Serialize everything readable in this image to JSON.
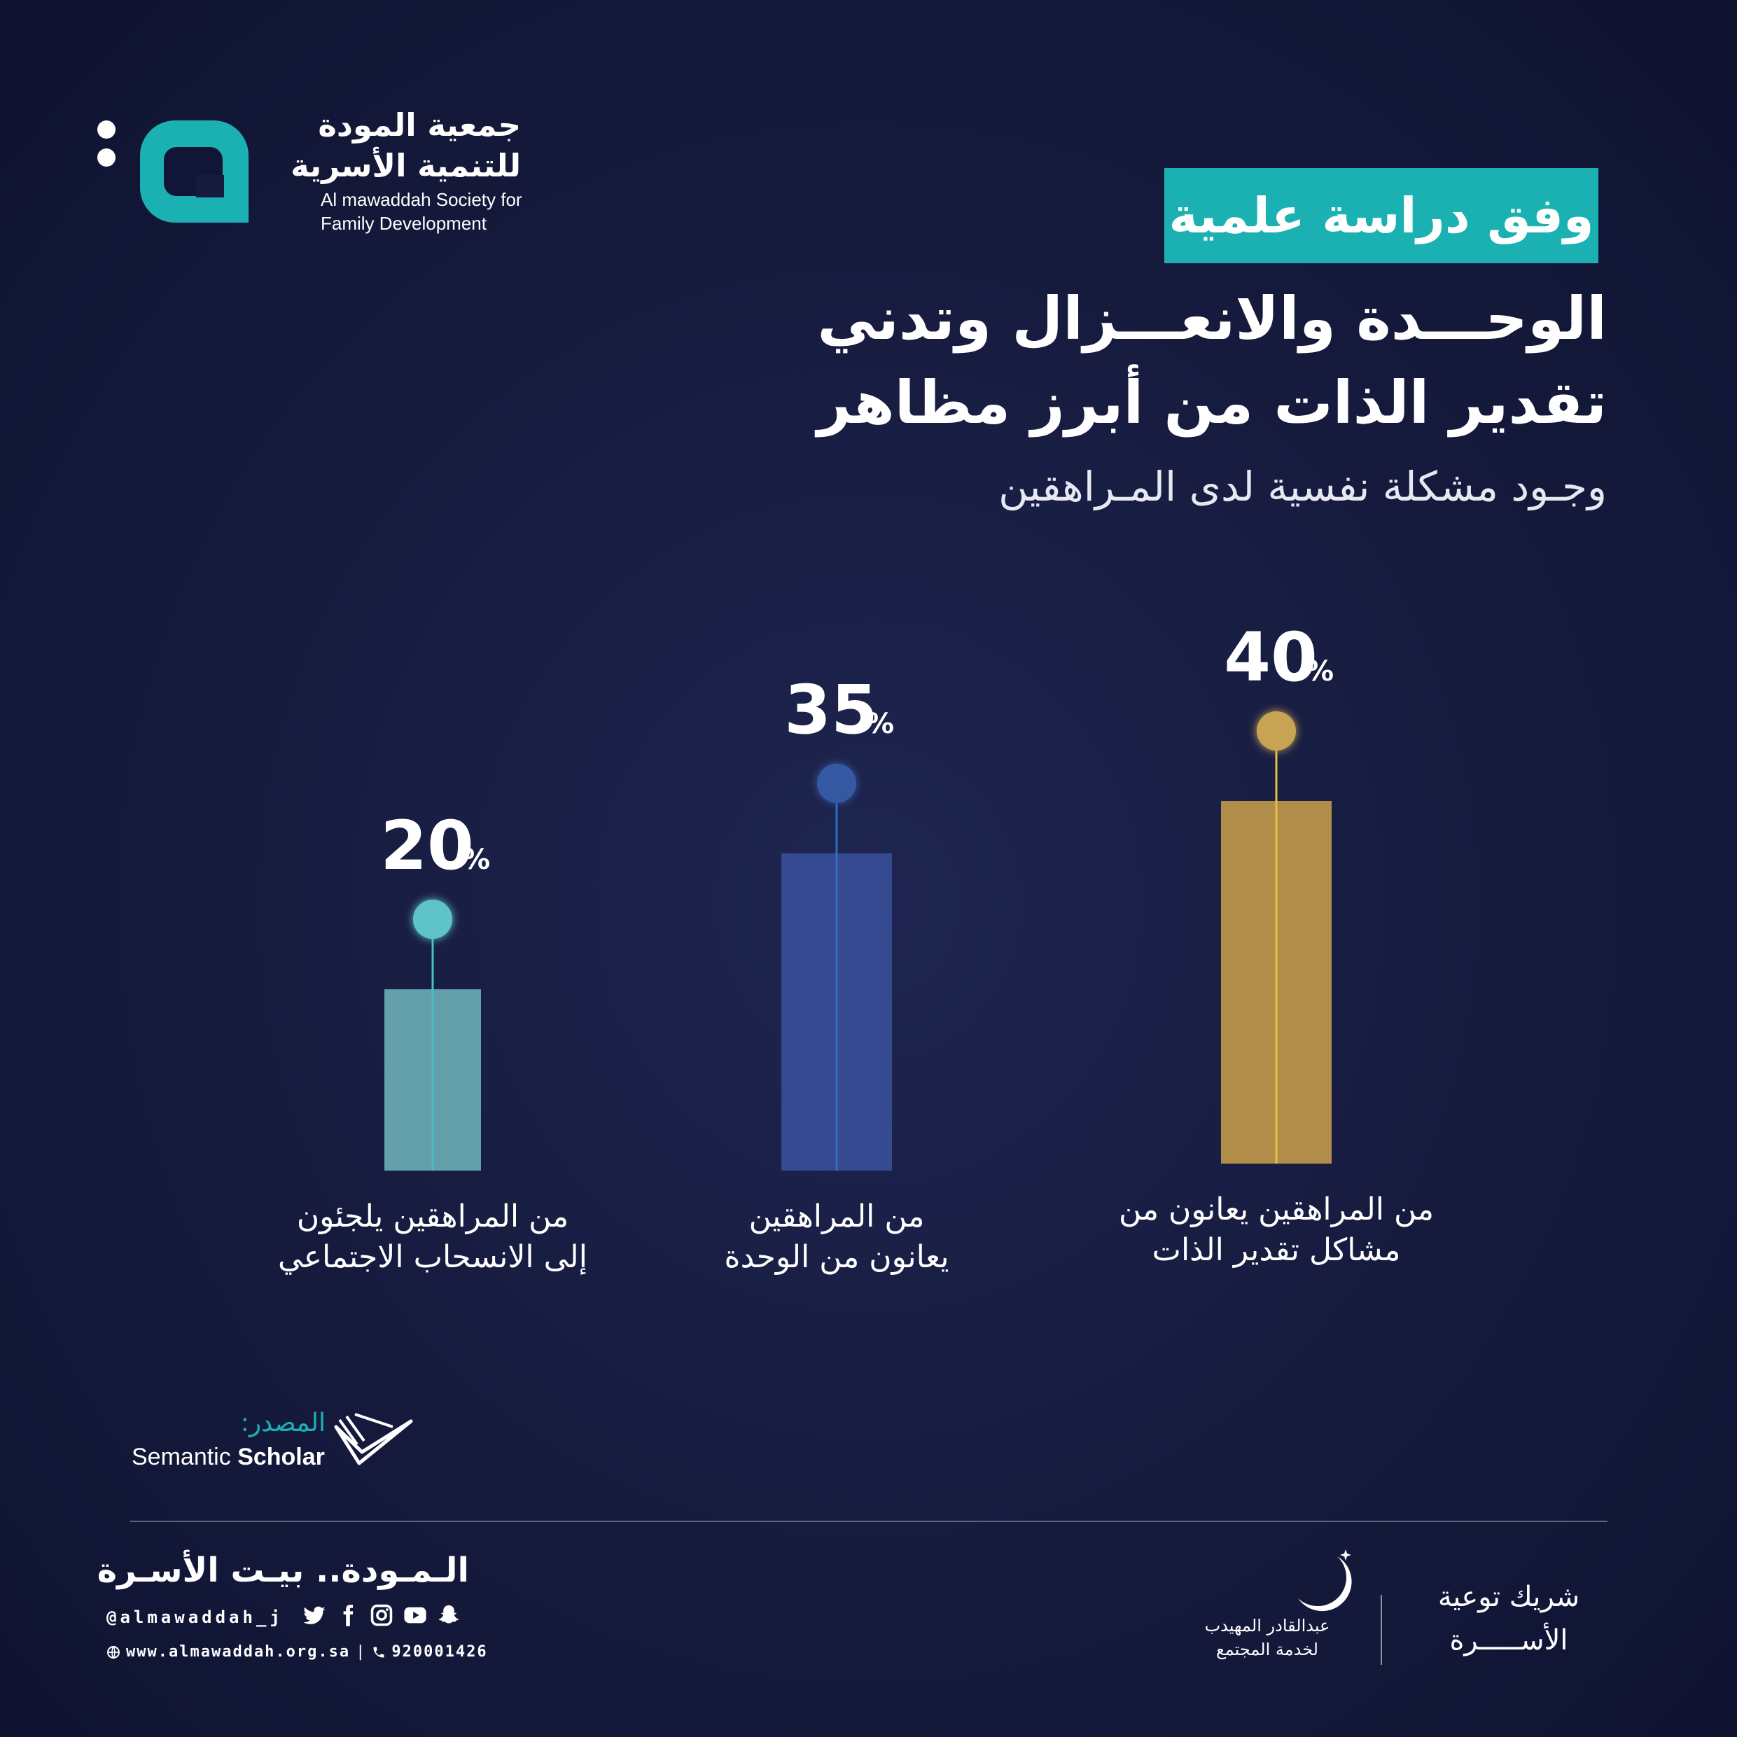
{
  "header": {
    "org_name_ar_line1": "جمعية المودة",
    "org_name_ar_line2": "للتنمية الأسرية",
    "org_name_en_line1": "Al mawaddah Society for",
    "org_name_en_line2": "Family Development",
    "brand_color": "#1bb1b3"
  },
  "badge": {
    "text": "وفق دراسة علمية"
  },
  "title": {
    "line1": "الوحـــدة والانعـــزال وتدني",
    "line2": "تقدير الذات من أبرز مظاهر",
    "subtitle": "وجـود مشكلة نفسية لدى المـراهقين"
  },
  "chart_data": {
    "type": "bar",
    "categories": [
      "من المراهقين يلجئون إلى الانسحاب الاجتماعي",
      "من المراهقين يعانون من الوحدة",
      "من المراهقين يعانون من مشاكل تقدير الذات"
    ],
    "category_lines": [
      [
        "من المراهقين يلجئون",
        "إلى الانسحاب الاجتماعي"
      ],
      [
        "من المراهقين",
        "يعانون من الوحدة"
      ],
      [
        "من المراهقين يعانون من",
        "مشاكل تقدير الذات"
      ]
    ],
    "values": [
      20,
      35,
      40
    ],
    "value_labels": [
      "20",
      "35",
      "40"
    ],
    "unit": "%",
    "colors": [
      "#63a0ab",
      "#354a90",
      "#b08e4a"
    ],
    "stem_colors": [
      "#46c0c8",
      "#2f6ec0",
      "#e8be45"
    ],
    "dot_colors": [
      "#5ec4c9",
      "#3558a3",
      "#c7a452"
    ],
    "ylim": [
      0,
      45
    ]
  },
  "source": {
    "label": "المصدر:",
    "name_light": "Semantic ",
    "name_bold": "Scholar"
  },
  "footer": {
    "slogan": "الـمـودة.. بيـت الأسـرة",
    "handle": "@almawaddah_j",
    "website": "www.almawaddah.org.sa",
    "phone": "920001426",
    "separator": "|",
    "social_icons": [
      "snapchat-icon",
      "youtube-icon",
      "instagram-icon",
      "facebook-icon",
      "twitter-icon"
    ],
    "partner_label_line1": "شريك توعية",
    "partner_label_line2": "الأســـــرة",
    "partner_name_line1": "عبدالقادر المهيدب",
    "partner_name_line2": "لخدمة المجتمع"
  }
}
